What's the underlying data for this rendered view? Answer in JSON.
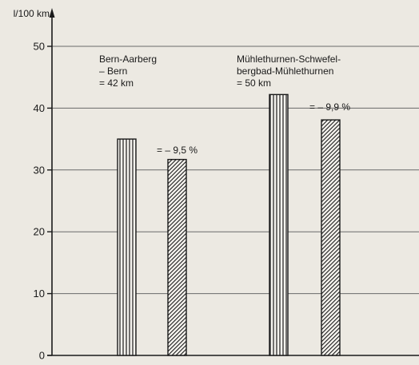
{
  "chart_data": {
    "type": "bar",
    "ylabel": "l/100 km",
    "ylim": [
      0,
      50
    ],
    "yticks": [
      0,
      10,
      20,
      30,
      40,
      50
    ],
    "grid": "horizontal",
    "groups": [
      {
        "label_lines": [
          "Bern-Aarberg",
          "– Bern",
          "= 42 km"
        ],
        "values": [
          35,
          31.7
        ],
        "patterns": [
          "vertical-stripes",
          "diagonal-hatch"
        ],
        "change_label": "= – 9,5 %"
      },
      {
        "label_lines": [
          "Mühlethurnen-Schwefel-",
          "bergbad-Mühlethurnen",
          "= 50 km"
        ],
        "values": [
          42.2,
          38.1
        ],
        "patterns": [
          "vertical-stripes",
          "diagonal-hatch"
        ],
        "change_label": "= – 9,9 %"
      }
    ]
  },
  "colors": {
    "background": "#ece9e2",
    "ink": "#1a1a1a",
    "grid": "#6a6a6a",
    "bar_fill": "#f5f3ee"
  }
}
